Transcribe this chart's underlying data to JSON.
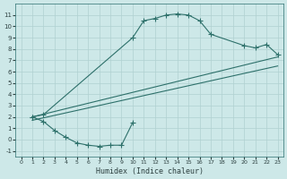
{
  "background_color": "#cde8e8",
  "grid_color": "#b0d0d0",
  "line_color": "#2d706a",
  "marker_style": "+",
  "marker_size": 4,
  "marker_lw": 0.8,
  "xlabel": "Humidex (Indice chaleur)",
  "xlim": [
    -0.5,
    23.5
  ],
  "ylim": [
    -1.5,
    12.0
  ],
  "xticks": [
    0,
    1,
    2,
    3,
    4,
    5,
    6,
    7,
    8,
    9,
    10,
    11,
    12,
    13,
    14,
    15,
    16,
    17,
    18,
    19,
    20,
    21,
    22,
    23
  ],
  "yticks": [
    -1,
    0,
    1,
    2,
    3,
    4,
    5,
    6,
    7,
    8,
    9,
    10,
    11
  ],
  "curve_upper_x": [
    1,
    2,
    10,
    11,
    12,
    13,
    14,
    15,
    16,
    17,
    20,
    21,
    22,
    23
  ],
  "curve_upper_y": [
    2,
    2.2,
    9.0,
    10.5,
    10.7,
    11.0,
    11.1,
    11.0,
    10.5,
    9.3,
    8.3,
    8.1,
    8.4,
    7.5
  ],
  "curve_lower_x": [
    1,
    2,
    3,
    4,
    5,
    6,
    7,
    8,
    9,
    10
  ],
  "curve_lower_y": [
    2,
    1.6,
    0.8,
    0.2,
    -0.3,
    -0.5,
    -0.6,
    -0.5,
    -0.5,
    1.5
  ],
  "line1_x": [
    1,
    23
  ],
  "line1_y": [
    2.0,
    7.3
  ],
  "line2_x": [
    1,
    23
  ],
  "line2_y": [
    1.7,
    6.5
  ],
  "line3_x": [
    10,
    23
  ],
  "line3_y": [
    4.2,
    7.3
  ]
}
